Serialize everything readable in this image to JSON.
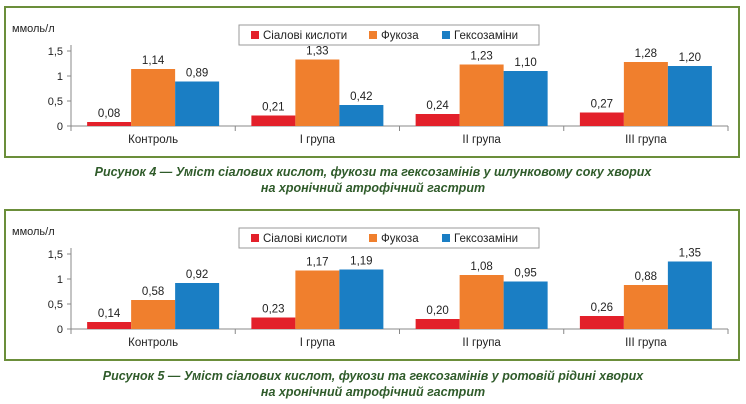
{
  "colors": {
    "sialic": "#e3202a",
    "fucose": "#f07f2d",
    "hexosamines": "#1a7ec4",
    "frame": "#6b8e3a",
    "caption": "#2f5b2a",
    "axis": "#888888"
  },
  "figure4": {
    "caption_line1": "Рисунок 4 — Уміст сіалових кислот, фукози та гексозамінів у шлунковому соку хворих",
    "caption_line2": "на хронічний атрофічний гастрит"
  },
  "figure5": {
    "caption_line1": "Рисунок 5 — Уміст сіалових кислот, фукози та гексозамінів у ротовій рідині хворих",
    "caption_line2": "на хронічний атрофічний гастрит"
  },
  "chart_data": [
    {
      "type": "bar",
      "ylabel": "ммоль/л",
      "ylim": [
        0,
        1.5
      ],
      "yticks": [
        "0",
        "0,5",
        "1",
        "1,5"
      ],
      "legend_position": "top-center",
      "categories": [
        "Контроль",
        "І група",
        "ІІ група",
        "ІІІ група"
      ],
      "series": [
        {
          "name": "Сіалові кислоти",
          "values": [
            0.08,
            0.21,
            0.24,
            0.27
          ],
          "labels": [
            "0,08",
            "0,21",
            "0,24",
            "0,27"
          ]
        },
        {
          "name": "Фукоза",
          "values": [
            1.14,
            1.33,
            1.23,
            1.28
          ],
          "labels": [
            "1,14",
            "1,33",
            "1,23",
            "1,28"
          ]
        },
        {
          "name": "Гексозаміни",
          "values": [
            0.89,
            0.42,
            1.1,
            1.2
          ],
          "labels": [
            "0,89",
            "0,42",
            "1,10",
            "1,20"
          ]
        }
      ]
    },
    {
      "type": "bar",
      "ylabel": "ммоль/л",
      "ylim": [
        0,
        1.5
      ],
      "yticks": [
        "0",
        "0,5",
        "1",
        "1,5"
      ],
      "legend_position": "top-center",
      "categories": [
        "Контроль",
        "І група",
        "ІІ група",
        "ІІІ група"
      ],
      "series": [
        {
          "name": "Сіалові кислоти",
          "values": [
            0.14,
            0.23,
            0.2,
            0.26
          ],
          "labels": [
            "0,14",
            "0,23",
            "0,20",
            "0,26"
          ]
        },
        {
          "name": "Фукоза",
          "values": [
            0.58,
            1.17,
            1.08,
            0.88
          ],
          "labels": [
            "0,58",
            "1,17",
            "1,08",
            "0,88"
          ]
        },
        {
          "name": "Гексозаміни",
          "values": [
            0.92,
            1.19,
            0.95,
            1.35
          ],
          "labels": [
            "0,92",
            "1,19",
            "0,95",
            "1,35"
          ]
        }
      ]
    }
  ]
}
